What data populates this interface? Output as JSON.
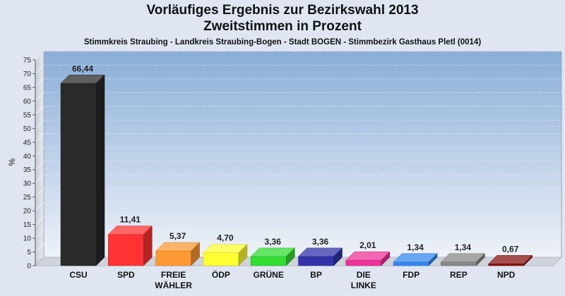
{
  "header": {
    "title_line1": "Vorläufiges Ergebnis zur Bezirkswahl 2013",
    "title_line2": "Zweitstimmen in Prozent",
    "subtitle": "Stimmkreis Straubing - Landkreis Straubing-Bogen - Stadt BOGEN - Stimmbezirk Gasthaus Pletl (0014)"
  },
  "chart_data": {
    "type": "bar",
    "title": "Vorläufiges Ergebnis zur Bezirkswahl 2013",
    "subtitle": "Zweitstimmen in Prozent",
    "xlabel": "",
    "ylabel": "%",
    "ylim": [
      0,
      75
    ],
    "yticks": [
      0,
      5,
      10,
      15,
      20,
      25,
      30,
      35,
      40,
      45,
      50,
      55,
      60,
      65,
      70,
      75
    ],
    "grid": true,
    "legend": "none",
    "categories": [
      [
        "CSU"
      ],
      [
        "SPD"
      ],
      [
        "FREIE",
        "WÄHLER"
      ],
      [
        "ÖDP"
      ],
      [
        "GRÜNE"
      ],
      [
        "BP"
      ],
      [
        "DIE",
        "LINKE"
      ],
      [
        "FDP"
      ],
      [
        "REP"
      ],
      [
        "NPD"
      ]
    ],
    "values": [
      66.44,
      11.41,
      5.37,
      4.7,
      3.36,
      3.36,
      2.01,
      1.34,
      1.34,
      0.67
    ],
    "value_labels": [
      "66,44",
      "11,41",
      "5,37",
      "4,70",
      "3,36",
      "3,36",
      "2,01",
      "1,34",
      "1,34",
      "0,67"
    ],
    "colors": [
      "#2a2a2a",
      "#ff3333",
      "#ff9933",
      "#ffff33",
      "#33dd33",
      "#3333aa",
      "#ee3399",
      "#3388ee",
      "#888888",
      "#881111"
    ]
  }
}
